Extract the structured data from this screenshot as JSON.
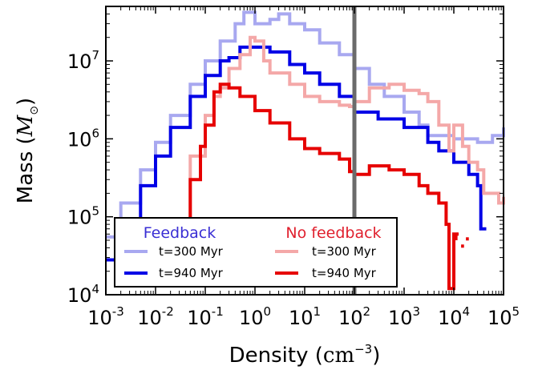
{
  "chart_data": {
    "type": "line",
    "xlabel": "Density",
    "xlabel_unit_base": "cm",
    "xlabel_unit_exp": "−3",
    "ylabel": "Mass",
    "ylabel_unit_base": "M",
    "ylabel_unit_sub": "⊙",
    "x_scale": "log",
    "y_scale": "log",
    "xlim": [
      0.001,
      100000
    ],
    "ylim": [
      10000,
      50000000
    ],
    "grid": false,
    "x_ticks": [
      {
        "value": 0.001,
        "base": "10",
        "exp": "-3"
      },
      {
        "value": 0.01,
        "base": "10",
        "exp": "-2"
      },
      {
        "value": 0.1,
        "base": "10",
        "exp": "-1"
      },
      {
        "value": 1,
        "base": "10",
        "exp": "0"
      },
      {
        "value": 10,
        "base": "10",
        "exp": "1"
      },
      {
        "value": 100,
        "base": "10",
        "exp": "2"
      },
      {
        "value": 1000,
        "base": "10",
        "exp": "3"
      },
      {
        "value": 10000,
        "base": "10",
        "exp": "4"
      },
      {
        "value": 100000,
        "base": "10",
        "exp": "5"
      }
    ],
    "y_ticks": [
      {
        "value": 10000,
        "base": "10",
        "exp": "4"
      },
      {
        "value": 100000,
        "base": "10",
        "exp": "5"
      },
      {
        "value": 1000000,
        "base": "10",
        "exp": "6"
      },
      {
        "value": 10000000,
        "base": "10",
        "exp": "7"
      }
    ],
    "vline": {
      "x": 100,
      "color": "#6b6b6b"
    },
    "legend": {
      "placement": "lower-left",
      "groups": [
        {
          "title": "Feedback",
          "title_color": "#3a2fd4",
          "entries": [
            {
              "label": "t=300 Myr",
              "color": "#a8a8f0"
            },
            {
              "label": "t=940 Myr",
              "color": "#0000e6"
            }
          ]
        },
        {
          "title": "No feedback",
          "title_color": "#e0202e",
          "entries": [
            {
              "label": "t=300 Myr",
              "color": "#f4a8a8"
            },
            {
              "label": "t=940 Myr",
              "color": "#e60000"
            }
          ]
        }
      ]
    },
    "series": [
      {
        "color": "#a8a8f0",
        "points": [
          [
            0.001,
            55000
          ],
          [
            0.002,
            150000
          ],
          [
            0.005,
            400000
          ],
          [
            0.01,
            900000
          ],
          [
            0.02,
            2000000
          ],
          [
            0.05,
            5000000
          ],
          [
            0.1,
            10000000
          ],
          [
            0.2,
            18000000
          ],
          [
            0.4,
            30000000
          ],
          [
            0.6,
            42000000
          ],
          [
            1,
            30000000
          ],
          [
            2,
            34000000
          ],
          [
            3,
            40000000
          ],
          [
            5,
            30000000
          ],
          [
            10,
            25000000
          ],
          [
            20,
            17000000
          ],
          [
            50,
            12000000
          ],
          [
            100,
            8000000
          ],
          [
            200,
            5000000
          ],
          [
            400,
            3500000
          ],
          [
            1000,
            2200000
          ],
          [
            2000,
            1500000
          ],
          [
            3000,
            1100000
          ],
          [
            5000,
            1100000
          ],
          [
            10000,
            1000000
          ],
          [
            20000,
            1000000
          ],
          [
            30000,
            900000
          ],
          [
            60000,
            1100000
          ],
          [
            100000,
            1400000
          ]
        ]
      },
      {
        "color": "#0000e6",
        "points": [
          [
            0.001,
            28000
          ],
          [
            0.002,
            80000
          ],
          [
            0.005,
            250000
          ],
          [
            0.01,
            600000
          ],
          [
            0.02,
            1400000
          ],
          [
            0.05,
            3500000
          ],
          [
            0.1,
            6500000
          ],
          [
            0.2,
            10000000
          ],
          [
            0.3,
            11000000
          ],
          [
            0.5,
            15000000
          ],
          [
            1,
            15000000
          ],
          [
            2,
            13000000
          ],
          [
            5,
            9000000
          ],
          [
            10,
            7000000
          ],
          [
            20,
            5000000
          ],
          [
            50,
            3500000
          ],
          [
            100,
            2200000
          ],
          [
            300,
            1800000
          ],
          [
            1000,
            1400000
          ],
          [
            3000,
            900000
          ],
          [
            5000,
            700000
          ],
          [
            10000,
            500000
          ],
          [
            20000,
            350000
          ],
          [
            30000,
            250000
          ],
          [
            35000,
            70000
          ],
          [
            45000,
            70000
          ]
        ]
      },
      {
        "color": "#f4a8a8",
        "points": [
          [
            0.025,
            50000
          ],
          [
            0.05,
            600000
          ],
          [
            0.1,
            2000000
          ],
          [
            0.15,
            3500000
          ],
          [
            0.2,
            4500000
          ],
          [
            0.3,
            8000000
          ],
          [
            0.5,
            12000000
          ],
          [
            0.8,
            20000000
          ],
          [
            1,
            18000000
          ],
          [
            1.5,
            10000000
          ],
          [
            2,
            7000000
          ],
          [
            5,
            5000000
          ],
          [
            10,
            3500000
          ],
          [
            20,
            3000000
          ],
          [
            50,
            2700000
          ],
          [
            80,
            2600000
          ],
          [
            100,
            3000000
          ],
          [
            200,
            4500000
          ],
          [
            500,
            5000000
          ],
          [
            1000,
            4200000
          ],
          [
            2000,
            3800000
          ],
          [
            3000,
            3000000
          ],
          [
            5000,
            1500000
          ],
          [
            8000,
            700000
          ],
          [
            10000,
            1500000
          ],
          [
            15000,
            800000
          ],
          [
            20000,
            500000
          ],
          [
            30000,
            400000
          ],
          [
            40000,
            200000
          ],
          [
            60000,
            200000
          ],
          [
            80000,
            150000
          ],
          [
            100000,
            180000
          ]
        ]
      },
      {
        "color": "#e60000",
        "points": [
          [
            0.025,
            70000
          ],
          [
            0.05,
            300000
          ],
          [
            0.08,
            800000
          ],
          [
            0.1,
            1500000
          ],
          [
            0.15,
            4000000
          ],
          [
            0.2,
            5000000
          ],
          [
            0.3,
            4500000
          ],
          [
            0.5,
            3500000
          ],
          [
            1,
            2300000
          ],
          [
            2,
            1600000
          ],
          [
            5,
            1000000
          ],
          [
            10,
            750000
          ],
          [
            20,
            650000
          ],
          [
            50,
            550000
          ],
          [
            80,
            380000
          ],
          [
            100,
            350000
          ],
          [
            200,
            450000
          ],
          [
            500,
            400000
          ],
          [
            1000,
            350000
          ],
          [
            2000,
            250000
          ],
          [
            3000,
            200000
          ],
          [
            5000,
            150000
          ],
          [
            7000,
            80000
          ],
          [
            8000,
            12000
          ],
          [
            10000,
            60000
          ],
          [
            11000,
            50000
          ]
        ]
      },
      {
        "color": "#e60000",
        "points": [
          [
            11500,
            60000
          ],
          [
            12500,
            60000
          ]
        ]
      },
      {
        "color": "#e60000",
        "points": [
          [
            14000,
            42000
          ],
          [
            16000,
            42000
          ]
        ]
      },
      {
        "color": "#e60000",
        "points": [
          [
            17500,
            52000
          ],
          [
            20000,
            52000
          ]
        ]
      }
    ]
  }
}
